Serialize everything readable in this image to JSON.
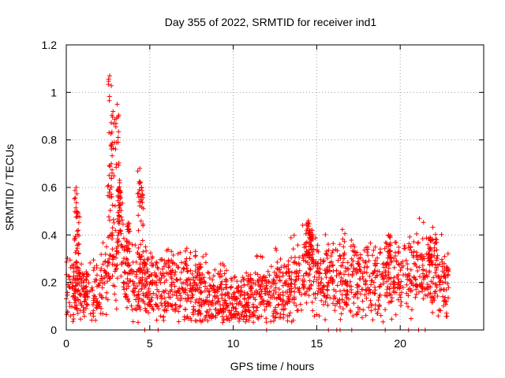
{
  "chart_data": {
    "type": "scatter",
    "title": "Day 355 of 2022, SRMTID for receiver ind1",
    "xlabel": "GPS time / hours",
    "ylabel": "SRMTID / TECUs",
    "xlim": [
      0,
      25
    ],
    "ylim": [
      0,
      1.2
    ],
    "x_ticks": [
      0,
      5,
      10,
      15,
      20
    ],
    "x_tick_labels": [
      "0",
      "5",
      "10",
      "15",
      "20"
    ],
    "y_ticks": [
      0,
      0.2,
      0.4,
      0.6,
      0.8,
      1.0,
      1.2
    ],
    "y_tick_labels": [
      "0",
      "0.2",
      "0.4",
      "0.6",
      "0.8",
      "1",
      "1.2"
    ],
    "grid": true,
    "series": [
      {
        "name": "SRMTID",
        "color": "#ff0000",
        "marker": "plus",
        "x_range": [
          0,
          22.9
        ],
        "base_profile": [
          [
            0,
            0.18
          ],
          [
            1,
            0.14
          ],
          [
            2,
            0.17
          ],
          [
            2.5,
            0.24
          ],
          [
            2.7,
            0.45
          ],
          [
            2.9,
            0.18
          ],
          [
            3.2,
            0.45
          ],
          [
            3.5,
            0.22
          ],
          [
            4,
            0.18
          ],
          [
            5,
            0.2
          ],
          [
            7,
            0.18
          ],
          [
            9,
            0.14
          ],
          [
            10,
            0.12
          ],
          [
            11,
            0.13
          ],
          [
            12,
            0.16
          ],
          [
            13,
            0.18
          ],
          [
            14,
            0.22
          ],
          [
            14.6,
            0.3
          ],
          [
            15,
            0.24
          ],
          [
            16,
            0.21
          ],
          [
            17,
            0.22
          ],
          [
            18,
            0.24
          ],
          [
            19,
            0.22
          ],
          [
            20,
            0.24
          ],
          [
            21,
            0.25
          ],
          [
            22,
            0.26
          ],
          [
            22.9,
            0.18
          ]
        ],
        "peaks": [
          {
            "x": 2.6,
            "y": 1.07
          },
          {
            "x": 2.8,
            "y": 0.92
          },
          {
            "x": 3.05,
            "y": 0.95
          },
          {
            "x": 3.2,
            "y": 0.62
          },
          {
            "x": 0.6,
            "y": 0.6
          },
          {
            "x": 4.4,
            "y": 0.68
          },
          {
            "x": 4.5,
            "y": 0.6
          },
          {
            "x": 14.5,
            "y": 0.46
          },
          {
            "x": 14.7,
            "y": 0.42
          },
          {
            "x": 0.7,
            "y": 0.49
          },
          {
            "x": 3.7,
            "y": 0.45
          },
          {
            "x": 19.3,
            "y": 0.4
          },
          {
            "x": 21.8,
            "y": 0.39
          }
        ],
        "zero_points": [
          4.7,
          5.5,
          12.0,
          15.7,
          16.2,
          16.4,
          17.1,
          19.1,
          20.5,
          21.1,
          21.5
        ]
      }
    ]
  }
}
